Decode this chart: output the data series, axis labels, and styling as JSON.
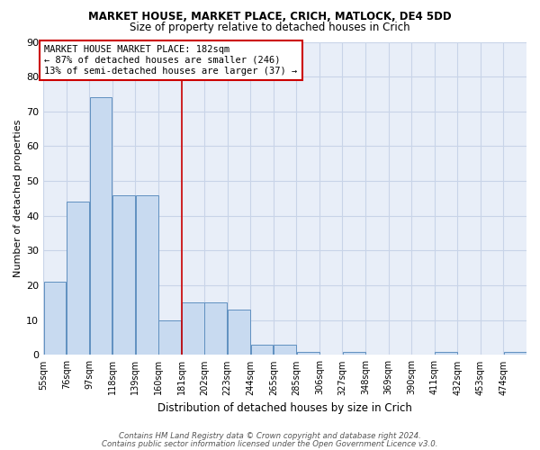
{
  "title1": "MARKET HOUSE, MARKET PLACE, CRICH, MATLOCK, DE4 5DD",
  "title2": "Size of property relative to detached houses in Crich",
  "xlabel": "Distribution of detached houses by size in Crich",
  "ylabel": "Number of detached properties",
  "footer1": "Contains HM Land Registry data © Crown copyright and database right 2024.",
  "footer2": "Contains public sector information licensed under the Open Government Licence v3.0.",
  "bin_labels": [
    "55sqm",
    "76sqm",
    "97sqm",
    "118sqm",
    "139sqm",
    "160sqm",
    "181sqm",
    "202sqm",
    "223sqm",
    "244sqm",
    "265sqm",
    "285sqm",
    "306sqm",
    "327sqm",
    "348sqm",
    "369sqm",
    "390sqm",
    "411sqm",
    "432sqm",
    "453sqm",
    "474sqm"
  ],
  "values": [
    21,
    44,
    74,
    46,
    46,
    10,
    15,
    15,
    13,
    3,
    3,
    1,
    0,
    1,
    0,
    0,
    0,
    1,
    0,
    0,
    1
  ],
  "annotation_line1": "MARKET HOUSE MARKET PLACE: 182sqm",
  "annotation_line2": "← 87% of detached houses are smaller (246)",
  "annotation_line3": "13% of semi-detached houses are larger (37) →",
  "bar_color": "#c8daf0",
  "bar_edge_color": "#6090c0",
  "line_color": "#cc0000",
  "annotation_box_color": "#ffffff",
  "annotation_box_edge": "#cc0000",
  "ylim": [
    0,
    90
  ],
  "yticks": [
    0,
    10,
    20,
    30,
    40,
    50,
    60,
    70,
    80,
    90
  ],
  "grid_color": "#c8d4e8",
  "background_color": "#e8eef8"
}
